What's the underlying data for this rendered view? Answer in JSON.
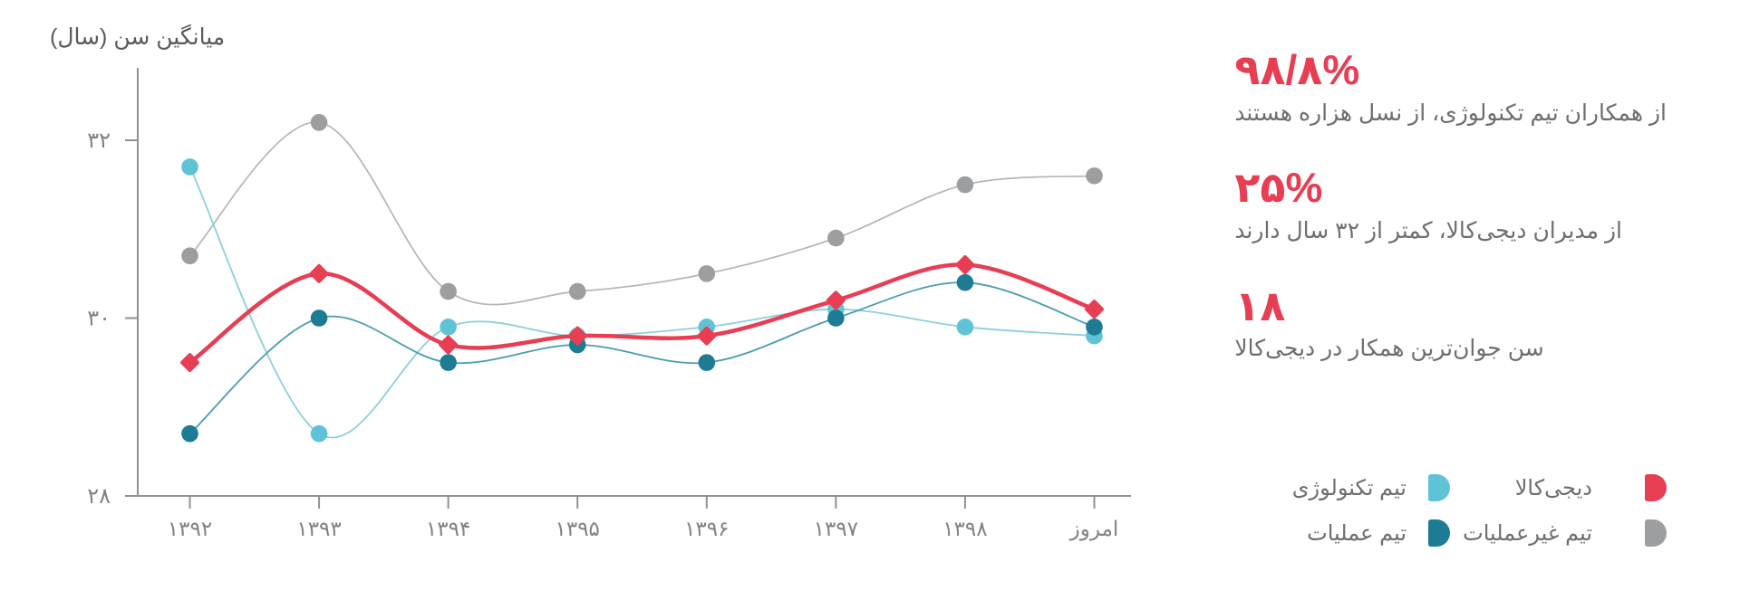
{
  "chart_data": {
    "type": "line",
    "title": "میانگین سن (سال)",
    "xlabel": "",
    "ylabel": "میانگین سن (سال)",
    "categories": [
      "۱۳۹۲",
      "۱۳۹۳",
      "۱۳۹۴",
      "۱۳۹۵",
      "۱۳۹۶",
      "۱۳۹۷",
      "۱۳۹۸",
      "امروز"
    ],
    "yticks": [
      {
        "label": "۳۲",
        "value": 32
      },
      {
        "label": "۳۰",
        "value": 30
      },
      {
        "label": "۲۸",
        "value": 28
      }
    ],
    "ylim": [
      28,
      32.8
    ],
    "grid": false,
    "legend_position": "bottom-right",
    "series": [
      {
        "name": "دیجی‌کالا",
        "marker": "diamond",
        "color": "#e73e54",
        "line_color": "#e73e54",
        "line_width": 4.5,
        "values": [
          29.5,
          30.5,
          29.7,
          29.8,
          29.8,
          30.2,
          30.6,
          30.1
        ]
      },
      {
        "name": "تیم غیرعملیات",
        "marker": "circle",
        "color": "#9c9ea0",
        "line_color": "#b4b5b7",
        "line_width": 1.7,
        "values": [
          30.7,
          32.2,
          30.3,
          30.3,
          30.5,
          30.9,
          31.5,
          31.6
        ]
      },
      {
        "name": "تیم تکنولوژی",
        "marker": "circle",
        "color": "#5fc3d6",
        "line_color": "#8bd0dd",
        "line_width": 1.8,
        "values": [
          31.7,
          28.7,
          29.9,
          29.8,
          29.9,
          30.1,
          29.9,
          29.8
        ]
      },
      {
        "name": "تیم عملیات",
        "marker": "circle",
        "color": "#1d7b94",
        "line_color": "#4a9cb2",
        "line_width": 1.8,
        "values": [
          28.7,
          30.0,
          29.5,
          29.7,
          29.5,
          30.0,
          30.4,
          29.9
        ]
      }
    ]
  },
  "stats": [
    {
      "value": "۹۸/۸%",
      "description": "از همکاران تیم تکنولوژی، از نسل هزاره هستند"
    },
    {
      "value": "۲۵%",
      "description": "از مدیران دیجی‌کالا، کمتر از ۳۲ سال دارند"
    },
    {
      "value": "۱۸",
      "description": "سن جوان‌ترین همکار در دیجی‌کالا"
    }
  ],
  "legend": {
    "columns": {
      "right_indices": [
        0,
        1
      ],
      "left_indices": [
        2,
        3
      ]
    }
  },
  "colors": {
    "accent": "#e73e54",
    "axis": "#919195",
    "tick_label": "#808285",
    "title_text": "#595a5c",
    "body_text": "#6d6e71"
  }
}
